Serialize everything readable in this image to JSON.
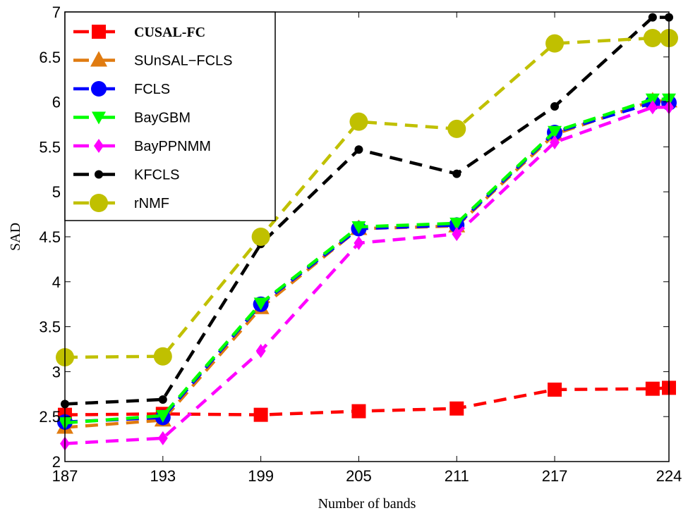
{
  "chart_data": {
    "type": "line",
    "title": "",
    "xlabel": "Number of bands",
    "ylabel": "SAD",
    "x": [
      187,
      193,
      199,
      205,
      211,
      217,
      223,
      224
    ],
    "xticks": [
      187,
      193,
      199,
      205,
      211,
      217,
      224
    ],
    "xlim": [
      187,
      224
    ],
    "ylim": [
      2,
      7
    ],
    "yticks": [
      2,
      2.5,
      3,
      3.5,
      4,
      4.5,
      5,
      5.5,
      6,
      6.5,
      7
    ],
    "grid": false,
    "legend_position": "top-left",
    "series": [
      {
        "name": "CUSAL-FC",
        "color": "#ff0000",
        "marker": "square",
        "bold": true,
        "values": [
          2.52,
          2.53,
          2.52,
          2.56,
          2.59,
          2.8,
          2.81,
          2.82
        ]
      },
      {
        "name": "SUnSAL−FCLS",
        "color": "#e07b10",
        "marker": "triangle-up",
        "values": [
          2.38,
          2.46,
          3.71,
          4.59,
          4.62,
          5.64,
          6.01,
          6.01
        ]
      },
      {
        "name": "FCLS",
        "color": "#0000ff",
        "marker": "circle",
        "values": [
          2.44,
          2.49,
          3.75,
          4.59,
          4.63,
          5.66,
          5.99,
          5.99
        ]
      },
      {
        "name": "BayGBM",
        "color": "#00ff00",
        "marker": "triangle-down",
        "values": [
          2.43,
          2.51,
          3.76,
          4.61,
          4.65,
          5.67,
          6.03,
          6.03
        ]
      },
      {
        "name": "BayPPNMM",
        "color": "#ff00ff",
        "marker": "diamond",
        "values": [
          2.2,
          2.26,
          3.23,
          4.43,
          4.53,
          5.55,
          5.94,
          5.94
        ]
      },
      {
        "name": "KFCLS",
        "color": "#000000",
        "marker": "dot",
        "values": [
          2.64,
          2.69,
          4.42,
          5.47,
          5.2,
          5.95,
          6.94,
          6.94
        ]
      },
      {
        "name": "rNMF",
        "color": "#c0c000",
        "marker": "big-circle",
        "values": [
          3.16,
          3.17,
          4.5,
          5.78,
          5.7,
          6.65,
          6.71,
          6.71
        ]
      }
    ]
  }
}
